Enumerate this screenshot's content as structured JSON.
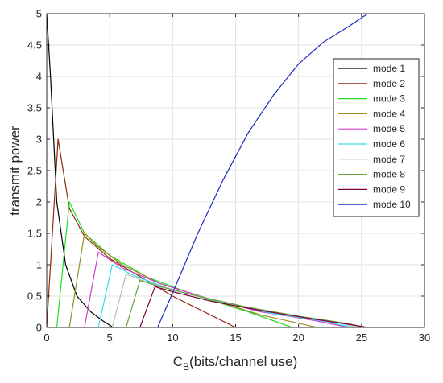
{
  "chart_data": {
    "type": "line",
    "xlabel_main": "C",
    "xlabel_sub": "B",
    "xlabel_rest": "(bits/channel use)",
    "ylabel": "transmit power",
    "xlim": [
      0,
      30
    ],
    "ylim": [
      0,
      5
    ],
    "xticks": [
      "0",
      "5",
      "10",
      "15",
      "20",
      "25",
      "30"
    ],
    "yticks": [
      "0",
      "0.5",
      "1",
      "1.5",
      "2",
      "2.5",
      "3",
      "3.5",
      "4",
      "4.5",
      "5"
    ],
    "grid": true,
    "legend_position": "top-right",
    "series": [
      {
        "name": "mode 1",
        "color": "#000000",
        "x": [
          0,
          0.3,
          0.8,
          1.5,
          2.4,
          3.5,
          4.5,
          5.3
        ],
        "y": [
          5,
          4,
          2,
          1,
          0.5,
          0.25,
          0.1,
          0
        ]
      },
      {
        "name": "mode 2",
        "color": "#8b2a10",
        "x": [
          0,
          0.9,
          1.8,
          3,
          5,
          7.5,
          10,
          12.5,
          15
        ],
        "y": [
          0,
          3,
          1.9,
          1.45,
          1.1,
          0.8,
          0.5,
          0.25,
          0
        ]
      },
      {
        "name": "mode 3",
        "color": "#22dd22",
        "x": [
          0.8,
          1.8,
          3,
          5,
          8,
          12,
          16,
          19.5
        ],
        "y": [
          0,
          2,
          1.5,
          1.15,
          0.8,
          0.5,
          0.25,
          0
        ]
      },
      {
        "name": "mode 4",
        "color": "#9a8c22",
        "x": [
          1.8,
          3,
          4,
          6,
          9,
          13,
          17,
          21.5
        ],
        "y": [
          0,
          1.5,
          1.3,
          1,
          0.7,
          0.45,
          0.2,
          0
        ]
      },
      {
        "name": "mode 5",
        "color": "#d040d0",
        "x": [
          3,
          4.1,
          6,
          9,
          13,
          17,
          21,
          24
        ],
        "y": [
          0,
          1.2,
          0.95,
          0.7,
          0.45,
          0.25,
          0.12,
          0
        ]
      },
      {
        "name": "mode 6",
        "color": "#33ddee",
        "x": [
          4.1,
          5.2,
          7,
          10,
          14,
          18,
          22,
          24.3
        ],
        "y": [
          0,
          1,
          0.82,
          0.6,
          0.4,
          0.22,
          0.1,
          0
        ]
      },
      {
        "name": "mode 7",
        "color": "#b4c0c0",
        "x": [
          5.2,
          6.3,
          8,
          11,
          15,
          19,
          23,
          24.8
        ],
        "y": [
          0,
          0.85,
          0.72,
          0.55,
          0.36,
          0.2,
          0.08,
          0
        ]
      },
      {
        "name": "mode 8",
        "color": "#66a030",
        "x": [
          6.3,
          7.4,
          9,
          12,
          16,
          20,
          24,
          25.2
        ],
        "y": [
          0,
          0.75,
          0.65,
          0.5,
          0.32,
          0.18,
          0.06,
          0
        ]
      },
      {
        "name": "mode 9",
        "color": "#800040",
        "x": [
          7.4,
          8.6,
          10,
          13,
          17,
          21,
          24,
          25.5
        ],
        "y": [
          0,
          0.65,
          0.57,
          0.42,
          0.27,
          0.14,
          0.05,
          0
        ]
      },
      {
        "name": "mode 10",
        "color": "#1c2bc0",
        "x": [
          8.8,
          10,
          12,
          14,
          16,
          18,
          20,
          22,
          24,
          25.5
        ],
        "y": [
          0,
          0.55,
          1.5,
          2.35,
          3.1,
          3.7,
          4.2,
          4.55,
          4.8,
          5
        ]
      }
    ]
  }
}
